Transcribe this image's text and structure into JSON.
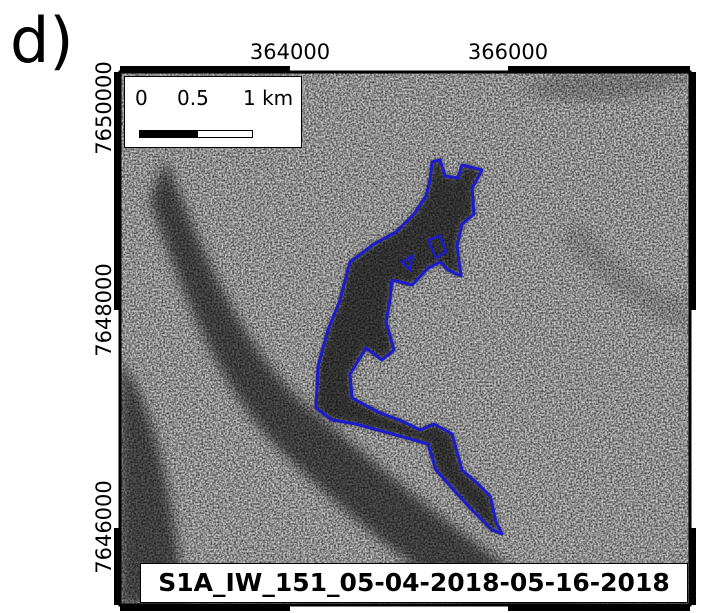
{
  "panel_label": "d)",
  "x_ticks": [
    "364000",
    "366000"
  ],
  "y_ticks": [
    "7650000",
    "7648000",
    "7646000"
  ],
  "scale_bar": {
    "labels": [
      "0",
      "0.5",
      "1 km"
    ]
  },
  "caption": "S1A_IW_151_05-04-2018-05-16-2018",
  "colors": {
    "outline": "#1c1ccc",
    "frame": "#000000",
    "background": "#ffffff"
  }
}
